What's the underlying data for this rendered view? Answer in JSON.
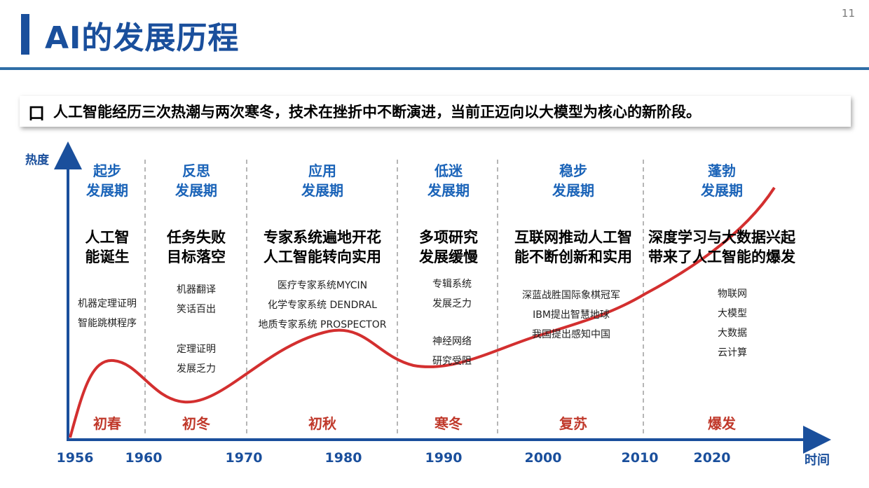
{
  "page_number": "11",
  "title": "AI的发展历程",
  "summary": {
    "bullet": "口",
    "text": "人工智能经历三次热潮与两次寒冬，技术在挫折中不断演进，当前正迈向以大模型为核心的新阶段。"
  },
  "axis": {
    "y_label": "热度",
    "x_label": "时间"
  },
  "years": [
    "1956",
    "1960",
    "1970",
    "1980",
    "1990",
    "2000",
    "2010",
    "2020"
  ],
  "periods": [
    {
      "name": [
        "起步",
        "发展期"
      ],
      "headline": [
        "人工智",
        "能诞生"
      ],
      "details": [
        [
          "机器定理证明",
          "智能跳棋程序"
        ]
      ],
      "season": "初春"
    },
    {
      "name": [
        "反思",
        "发展期"
      ],
      "headline": [
        "任务失败",
        "目标落空"
      ],
      "details": [
        [
          "机器翻译",
          "笑话百出"
        ],
        [
          "定理证明",
          "发展乏力"
        ]
      ],
      "season": "初冬"
    },
    {
      "name": [
        "应用",
        "发展期"
      ],
      "headline": [
        "专家系统遍地开花",
        "人工智能转向实用"
      ],
      "details": [
        [
          "医疗专家系统MYCIN",
          "化学专家系统 DENDRAL",
          "地质专家系统 PROSPECTOR"
        ]
      ],
      "season": "初秋"
    },
    {
      "name": [
        "低迷",
        "发展期"
      ],
      "headline": [
        "多项研究",
        "发展缓慢"
      ],
      "details": [
        [
          "专辑系统",
          "发展乏力"
        ],
        [
          "神经网络",
          "研究受阻"
        ]
      ],
      "season": "寒冬"
    },
    {
      "name": [
        "稳步",
        "发展期"
      ],
      "headline": [
        "互联网推动人工智",
        "能不断创新和实用"
      ],
      "details": [
        [
          "深蓝战胜国际象棋冠军",
          "IBM提出智慧地球",
          "我国提出感知中国"
        ]
      ],
      "season": "复苏"
    },
    {
      "name": [
        "蓬勃",
        "发展期"
      ],
      "headline": [
        "深度学习与大数据兴起",
        "带来了人工智能的爆发"
      ],
      "details": [
        [
          "物联网",
          "大模型",
          "大数据",
          "云计算"
        ]
      ],
      "season": "爆发"
    }
  ],
  "colors": {
    "axis": "#1a4f9c",
    "period_title": "#1a63b8",
    "curve": "#d32f2f",
    "season": "#c0392b",
    "divider": "#9e9e9e"
  }
}
